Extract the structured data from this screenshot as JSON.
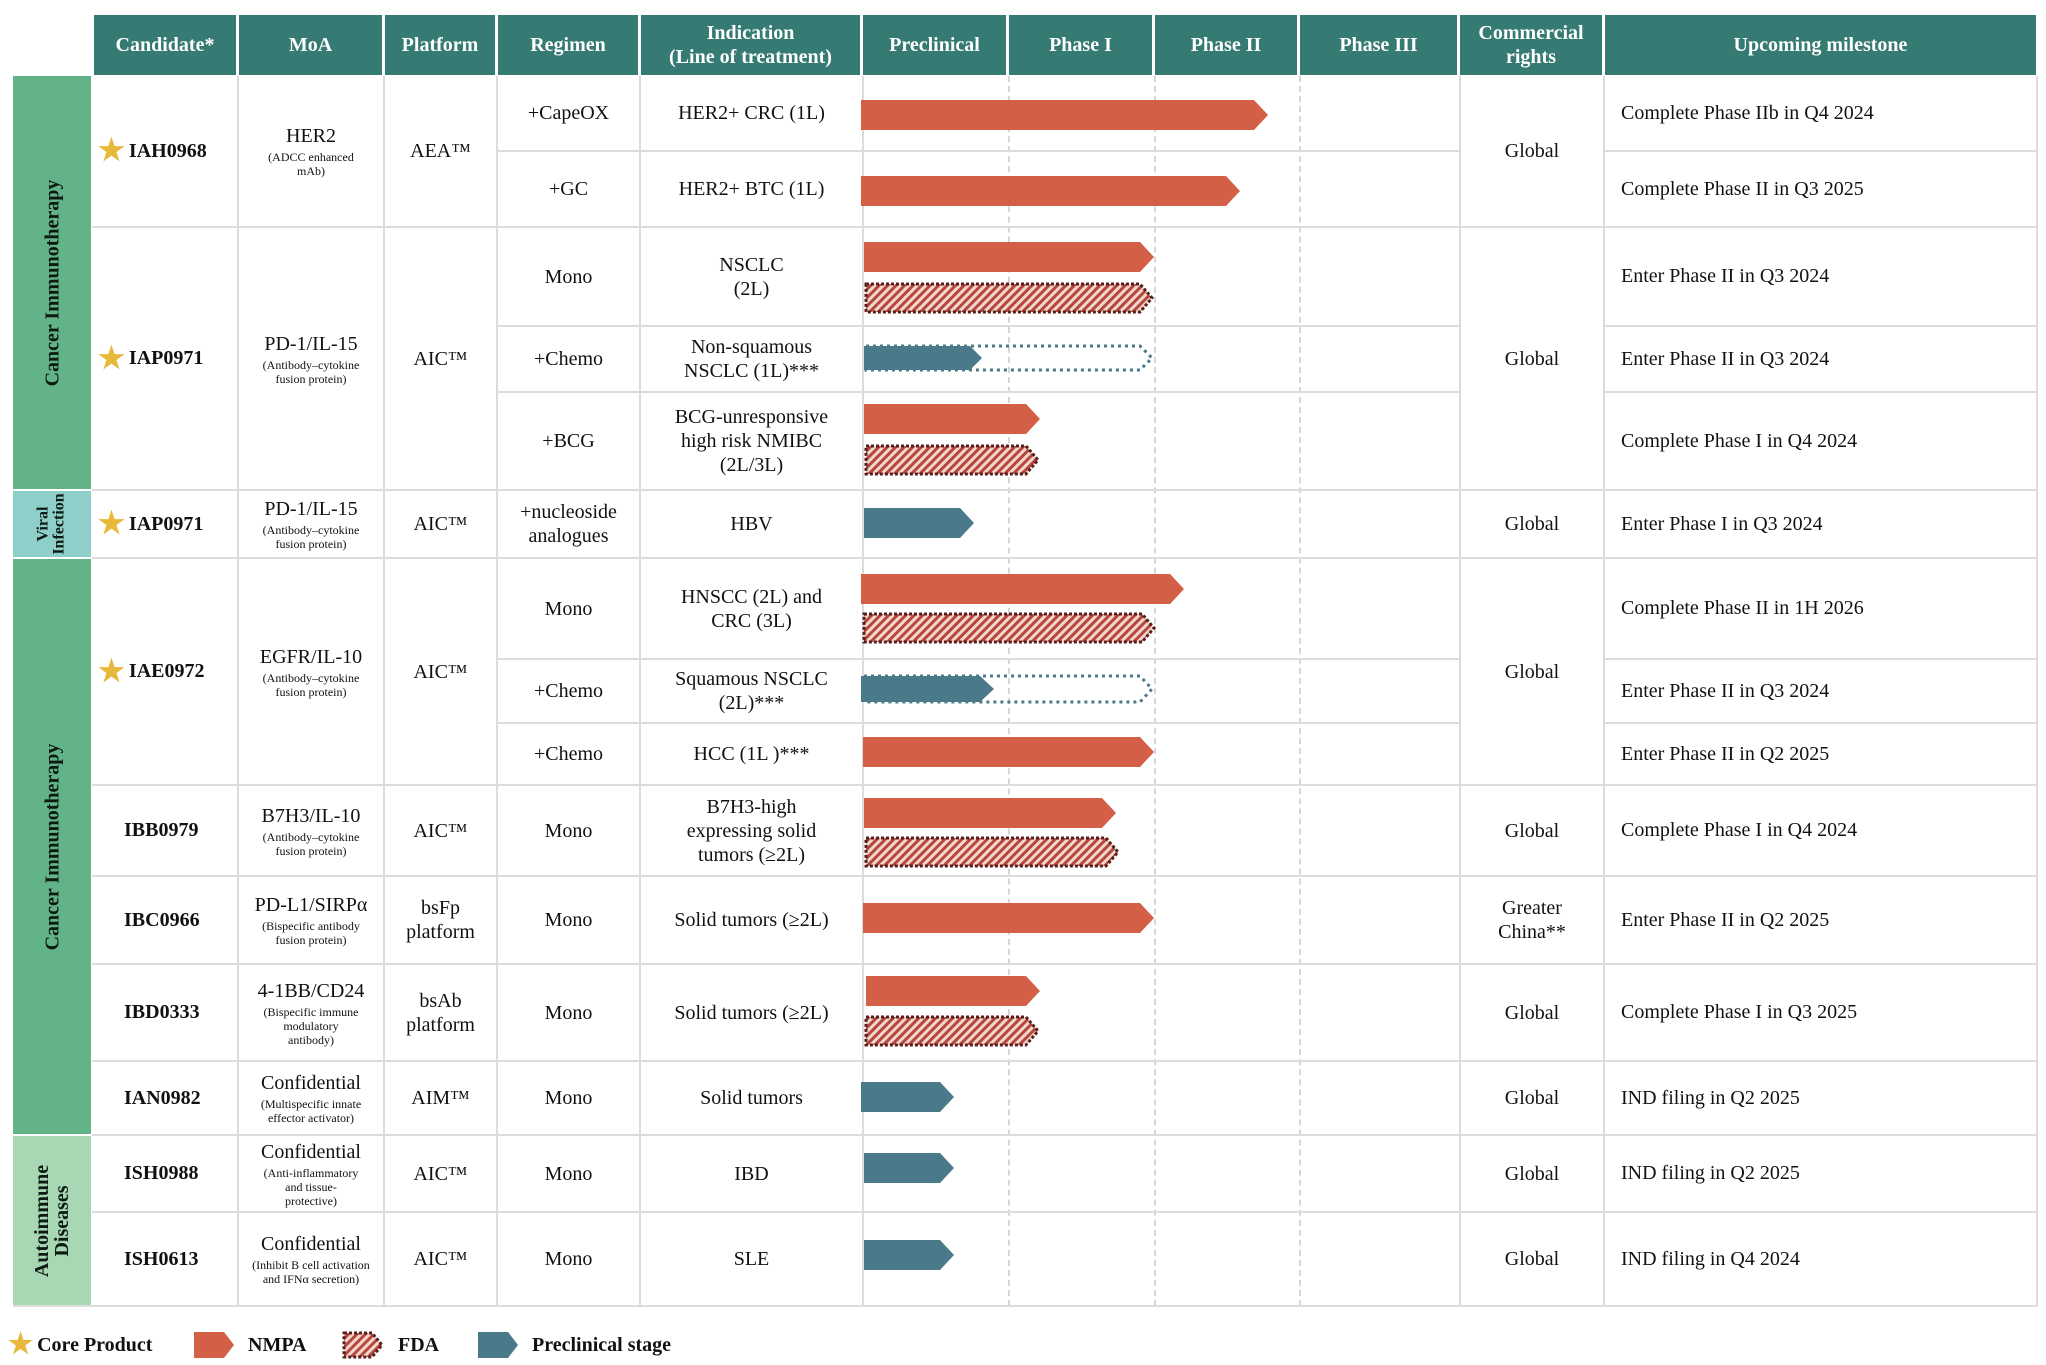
{
  "headers": {
    "candidate": "Candidate*",
    "moa": "MoA",
    "platform": "Platform",
    "regimen": "Regimen",
    "indication_line1": "Indication",
    "indication_line2": "(Line of treatment)",
    "preclinical": "Preclinical",
    "phase1": "Phase I",
    "phase2": "Phase II",
    "phase3": "Phase III",
    "rights_line1": "Commercial",
    "rights_line2": "rights",
    "milestone": "Upcoming milestone"
  },
  "categories": {
    "cancer_top": "Cancer Immunotherapy",
    "viral_line1": "Viral",
    "viral_line2": "Infection",
    "cancer_bottom": "Cancer Immunotherapy",
    "autoimmune_line1": "Autoimmune",
    "autoimmune_line2": "Diseases"
  },
  "candidates": {
    "iah0968": {
      "name": "IAH0968",
      "moa": "HER2",
      "moa_sub": "(ADCC enhanced mAb)",
      "platform": "AEA™",
      "rights": "Global"
    },
    "iap0971": {
      "name": "IAP0971",
      "moa": "PD-1/IL-15",
      "moa_sub": "(Antibody–cytokine fusion protein)",
      "platform": "AIC™",
      "rights": "Global"
    },
    "iap0971v": {
      "name": "IAP0971",
      "moa": "PD-1/IL-15",
      "moa_sub": "(Antibody–cytokine fusion protein)",
      "platform": "AIC™",
      "rights": "Global"
    },
    "iae0972": {
      "name": "IAE0972",
      "moa": "EGFR/IL-10",
      "moa_sub": "(Antibody–cytokine fusion protein)",
      "platform": "AIC™",
      "rights": "Global"
    },
    "ibb0979": {
      "name": "IBB0979",
      "moa": "B7H3/IL-10",
      "moa_sub": "(Antibody–cytokine fusion protein)",
      "platform": "AIC™",
      "rights": "Global"
    },
    "ibc0966": {
      "name": "IBC0966",
      "moa": "PD-L1/SIRPα",
      "moa_sub": "(Bispecific antibody fusion protein)",
      "platform_line1": "bsFp",
      "platform_line2": "platform",
      "rights_line1": "Greater",
      "rights_line2": "China**"
    },
    "ibd0333": {
      "name": "IBD0333",
      "moa": "4-1BB/CD24",
      "moa_sub": "(Bispecific immune modulatory antibody)",
      "platform_line1": "bsAb",
      "platform_line2": "platform",
      "rights": "Global"
    },
    "ian0982": {
      "name": "IAN0982",
      "moa": "Confidential",
      "moa_sub": "(Multispecific innate effector activator)",
      "platform": "AIM™",
      "rights": "Global"
    },
    "ish0988": {
      "name": "ISH0988",
      "moa": "Confidential",
      "moa_sub": "(Anti-inflammatory and tissue-protective)",
      "platform": "AIC™",
      "rights": "Global"
    },
    "ish0613": {
      "name": "ISH0613",
      "moa": "Confidential",
      "moa_sub": "(Inhibit B cell activation and IFNα secretion)",
      "platform": "AIC™",
      "rights": "Global"
    }
  },
  "rows": {
    "r1": {
      "regimen": "+CapeOX",
      "indication": "HER2+ CRC (1L)",
      "milestone": "Complete Phase IIb in Q4 2024"
    },
    "r2": {
      "regimen": "+GC",
      "indication": "HER2+ BTC (1L)",
      "milestone": "Complete Phase II in Q3 2025"
    },
    "r3": {
      "regimen": "Mono",
      "indication_line1": "NSCLC",
      "indication_line2": "(2L)",
      "milestone": "Enter Phase II in Q3 2024"
    },
    "r4": {
      "regimen": "+Chemo",
      "indication_line1": "Non-squamous",
      "indication_line2": "NSCLC (1L)***",
      "milestone": "Enter Phase II in Q3 2024"
    },
    "r5": {
      "regimen": "+BCG",
      "indication_line1": "BCG-unresponsive",
      "indication_line2": "high risk NMIBC",
      "indication_line3": "(2L/3L)",
      "milestone": "Complete Phase I in Q4 2024"
    },
    "r6": {
      "regimen_line1": "+nucleoside",
      "regimen_line2": "analogues",
      "indication": "HBV",
      "milestone": "Enter Phase I in Q3 2024"
    },
    "r7": {
      "regimen": "Mono",
      "indication_line1": "HNSCC (2L) and",
      "indication_line2": "CRC (3L)",
      "milestone": "Complete Phase II in 1H 2026"
    },
    "r8": {
      "regimen": "+Chemo",
      "indication_line1": "Squamous NSCLC",
      "indication_line2": "(2L)***",
      "milestone": "Enter Phase II in Q3 2024"
    },
    "r9": {
      "regimen": "+Chemo",
      "indication": "HCC (1L )***",
      "milestone": "Enter Phase II in Q2 2025"
    },
    "r10": {
      "regimen": "Mono",
      "indication_line1": "B7H3-high",
      "indication_line2": "expressing solid",
      "indication_line3": "tumors (≥2L)",
      "milestone": "Complete Phase I in Q4 2024"
    },
    "r11": {
      "regimen": "Mono",
      "indication": "Solid tumors (≥2L)",
      "milestone": "Enter Phase II in Q2 2025"
    },
    "r12": {
      "regimen": "Mono",
      "indication": "Solid tumors (≥2L)",
      "milestone": "Complete Phase I in Q3 2025"
    },
    "r13": {
      "regimen": "Mono",
      "indication": "Solid tumors",
      "milestone": "IND filing in Q2 2025"
    },
    "r14": {
      "regimen": "Mono",
      "indication": "IBD",
      "milestone": "IND filing in Q2 2025"
    },
    "r15": {
      "regimen": "Mono",
      "indication": "SLE",
      "milestone": "IND filing in Q4 2024"
    }
  },
  "progress_bars": [
    {
      "row": "r1",
      "type": "NMPA",
      "stage": "Phase II",
      "progress_fraction_of_phase_II": 0.8
    },
    {
      "row": "r2",
      "type": "NMPA",
      "stage": "Phase II",
      "progress_fraction_of_phase_II": 0.6
    },
    {
      "row": "r3",
      "type": "NMPA",
      "stage": "Phase I",
      "progress_fraction_of_phase_I": 1.0
    },
    {
      "row": "r3",
      "type": "FDA",
      "stage": "Phase I",
      "progress_fraction_of_phase_I": 1.0
    },
    {
      "row": "r4",
      "type": "Preclinical stage",
      "stage": "Preclinical",
      "planned_through": "Phase I"
    },
    {
      "row": "r5",
      "type": "NMPA",
      "stage": "Phase I",
      "progress_fraction_of_phase_I": 0.25
    },
    {
      "row": "r5",
      "type": "FDA",
      "stage": "Phase I",
      "progress_fraction_of_phase_I": 0.25
    },
    {
      "row": "r6",
      "type": "Preclinical stage",
      "stage": "Preclinical",
      "progress_fraction_of_preclinical": 0.8
    },
    {
      "row": "r7",
      "type": "NMPA",
      "stage": "Phase II",
      "progress_fraction_of_phase_II": 0.2
    },
    {
      "row": "r7",
      "type": "FDA",
      "stage": "Phase I",
      "progress_fraction_of_phase_I": 1.0
    },
    {
      "row": "r8",
      "type": "Preclinical stage",
      "stage": "Preclinical",
      "planned_through": "Phase I"
    },
    {
      "row": "r9",
      "type": "NMPA",
      "stage": "Phase I",
      "progress_fraction_of_phase_I": 1.0
    },
    {
      "row": "r10",
      "type": "NMPA",
      "stage": "Phase I",
      "progress_fraction_of_phase_I": 0.75
    },
    {
      "row": "r10",
      "type": "FDA",
      "stage": "Phase I",
      "progress_fraction_of_phase_I": 0.75
    },
    {
      "row": "r11",
      "type": "NMPA",
      "stage": "Phase I",
      "progress_fraction_of_phase_I": 1.0
    },
    {
      "row": "r12",
      "type": "NMPA",
      "stage": "Phase I",
      "progress_fraction_of_phase_I": 0.25
    },
    {
      "row": "r12",
      "type": "FDA",
      "stage": "Phase I",
      "progress_fraction_of_phase_I": 0.25
    },
    {
      "row": "r13",
      "type": "Preclinical stage",
      "stage": "Preclinical",
      "progress_fraction_of_preclinical": 0.6
    },
    {
      "row": "r14",
      "type": "Preclinical stage",
      "stage": "Preclinical",
      "progress_fraction_of_preclinical": 0.6
    },
    {
      "row": "r15",
      "type": "Preclinical stage",
      "stage": "Preclinical",
      "progress_fraction_of_preclinical": 0.6
    }
  ],
  "legend": {
    "core": "Core Product",
    "nmpa": "NMPA",
    "fda": "FDA",
    "preclinical": "Preclinical stage"
  },
  "colors": {
    "header": "#357b73",
    "cancer_band": "#63b389",
    "viral_band": "#8ecfc9",
    "autoimmune_band": "#a8d7b4",
    "nmpa": "#d25f46",
    "fda_stripe": "#b5473b",
    "fda_border": "#5a1f1a",
    "preclinical": "#4a7a8a",
    "star": "#e8b83b"
  }
}
